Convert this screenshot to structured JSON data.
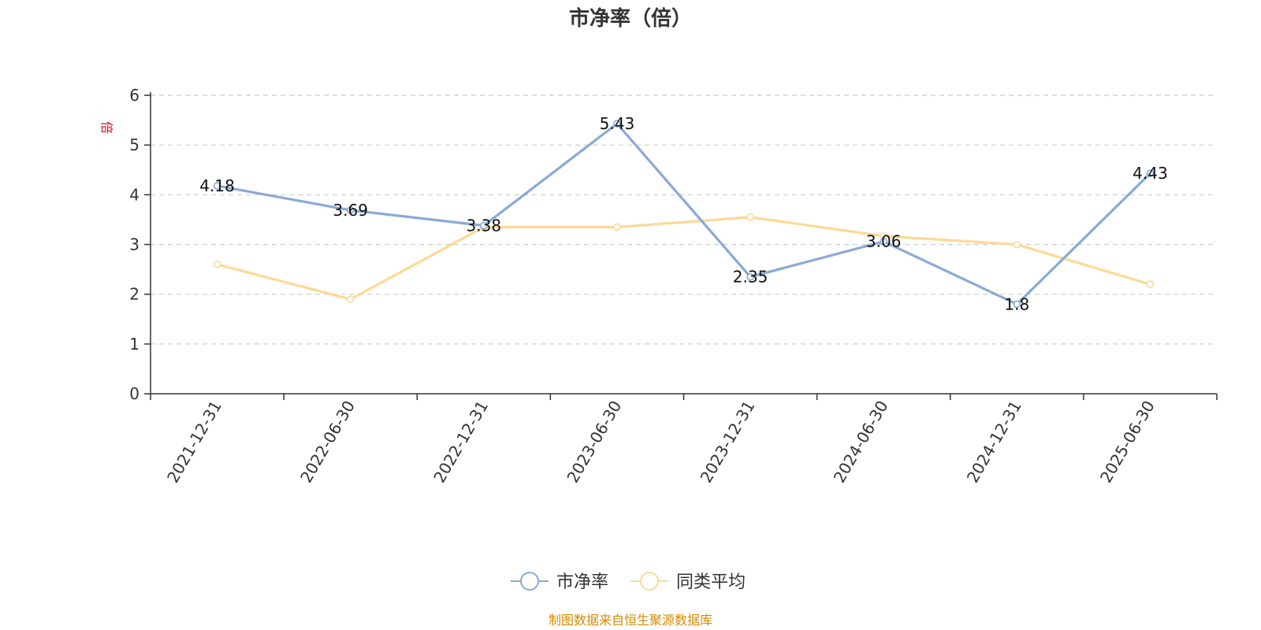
{
  "chart_data": {
    "type": "line",
    "title": "市净率（倍）",
    "ylabel": "倍",
    "categories": [
      "2021-12-31",
      "2022-06-30",
      "2022-12-31",
      "2023-06-30",
      "2023-12-31",
      "2024-06-30",
      "2024-12-31",
      "2025-06-30"
    ],
    "ylim": [
      0,
      6
    ],
    "yticks": [
      0,
      1,
      2,
      3,
      4,
      5,
      6
    ],
    "grid": true,
    "legend_position": "bottom",
    "series": [
      {
        "name": "市净率",
        "values": [
          4.18,
          3.69,
          3.38,
          5.43,
          2.35,
          3.06,
          1.8,
          4.43
        ],
        "labels": [
          "4.18",
          "3.69",
          "3.38",
          "5.43",
          "2.35",
          "3.06",
          "1.8",
          "4.43"
        ],
        "color": "#8aa9d6",
        "show_labels": true
      },
      {
        "name": "同类平均",
        "values": [
          2.6,
          1.9,
          3.35,
          3.35,
          3.55,
          3.17,
          3.0,
          2.2
        ],
        "color": "#fdd995",
        "show_labels": false
      }
    ]
  },
  "colors": {
    "axis": "#333333",
    "grid": "#cccccc",
    "unit": "#e0002a",
    "source": "#d48a00"
  },
  "source_text": "制图数据来自恒生聚源数据库"
}
